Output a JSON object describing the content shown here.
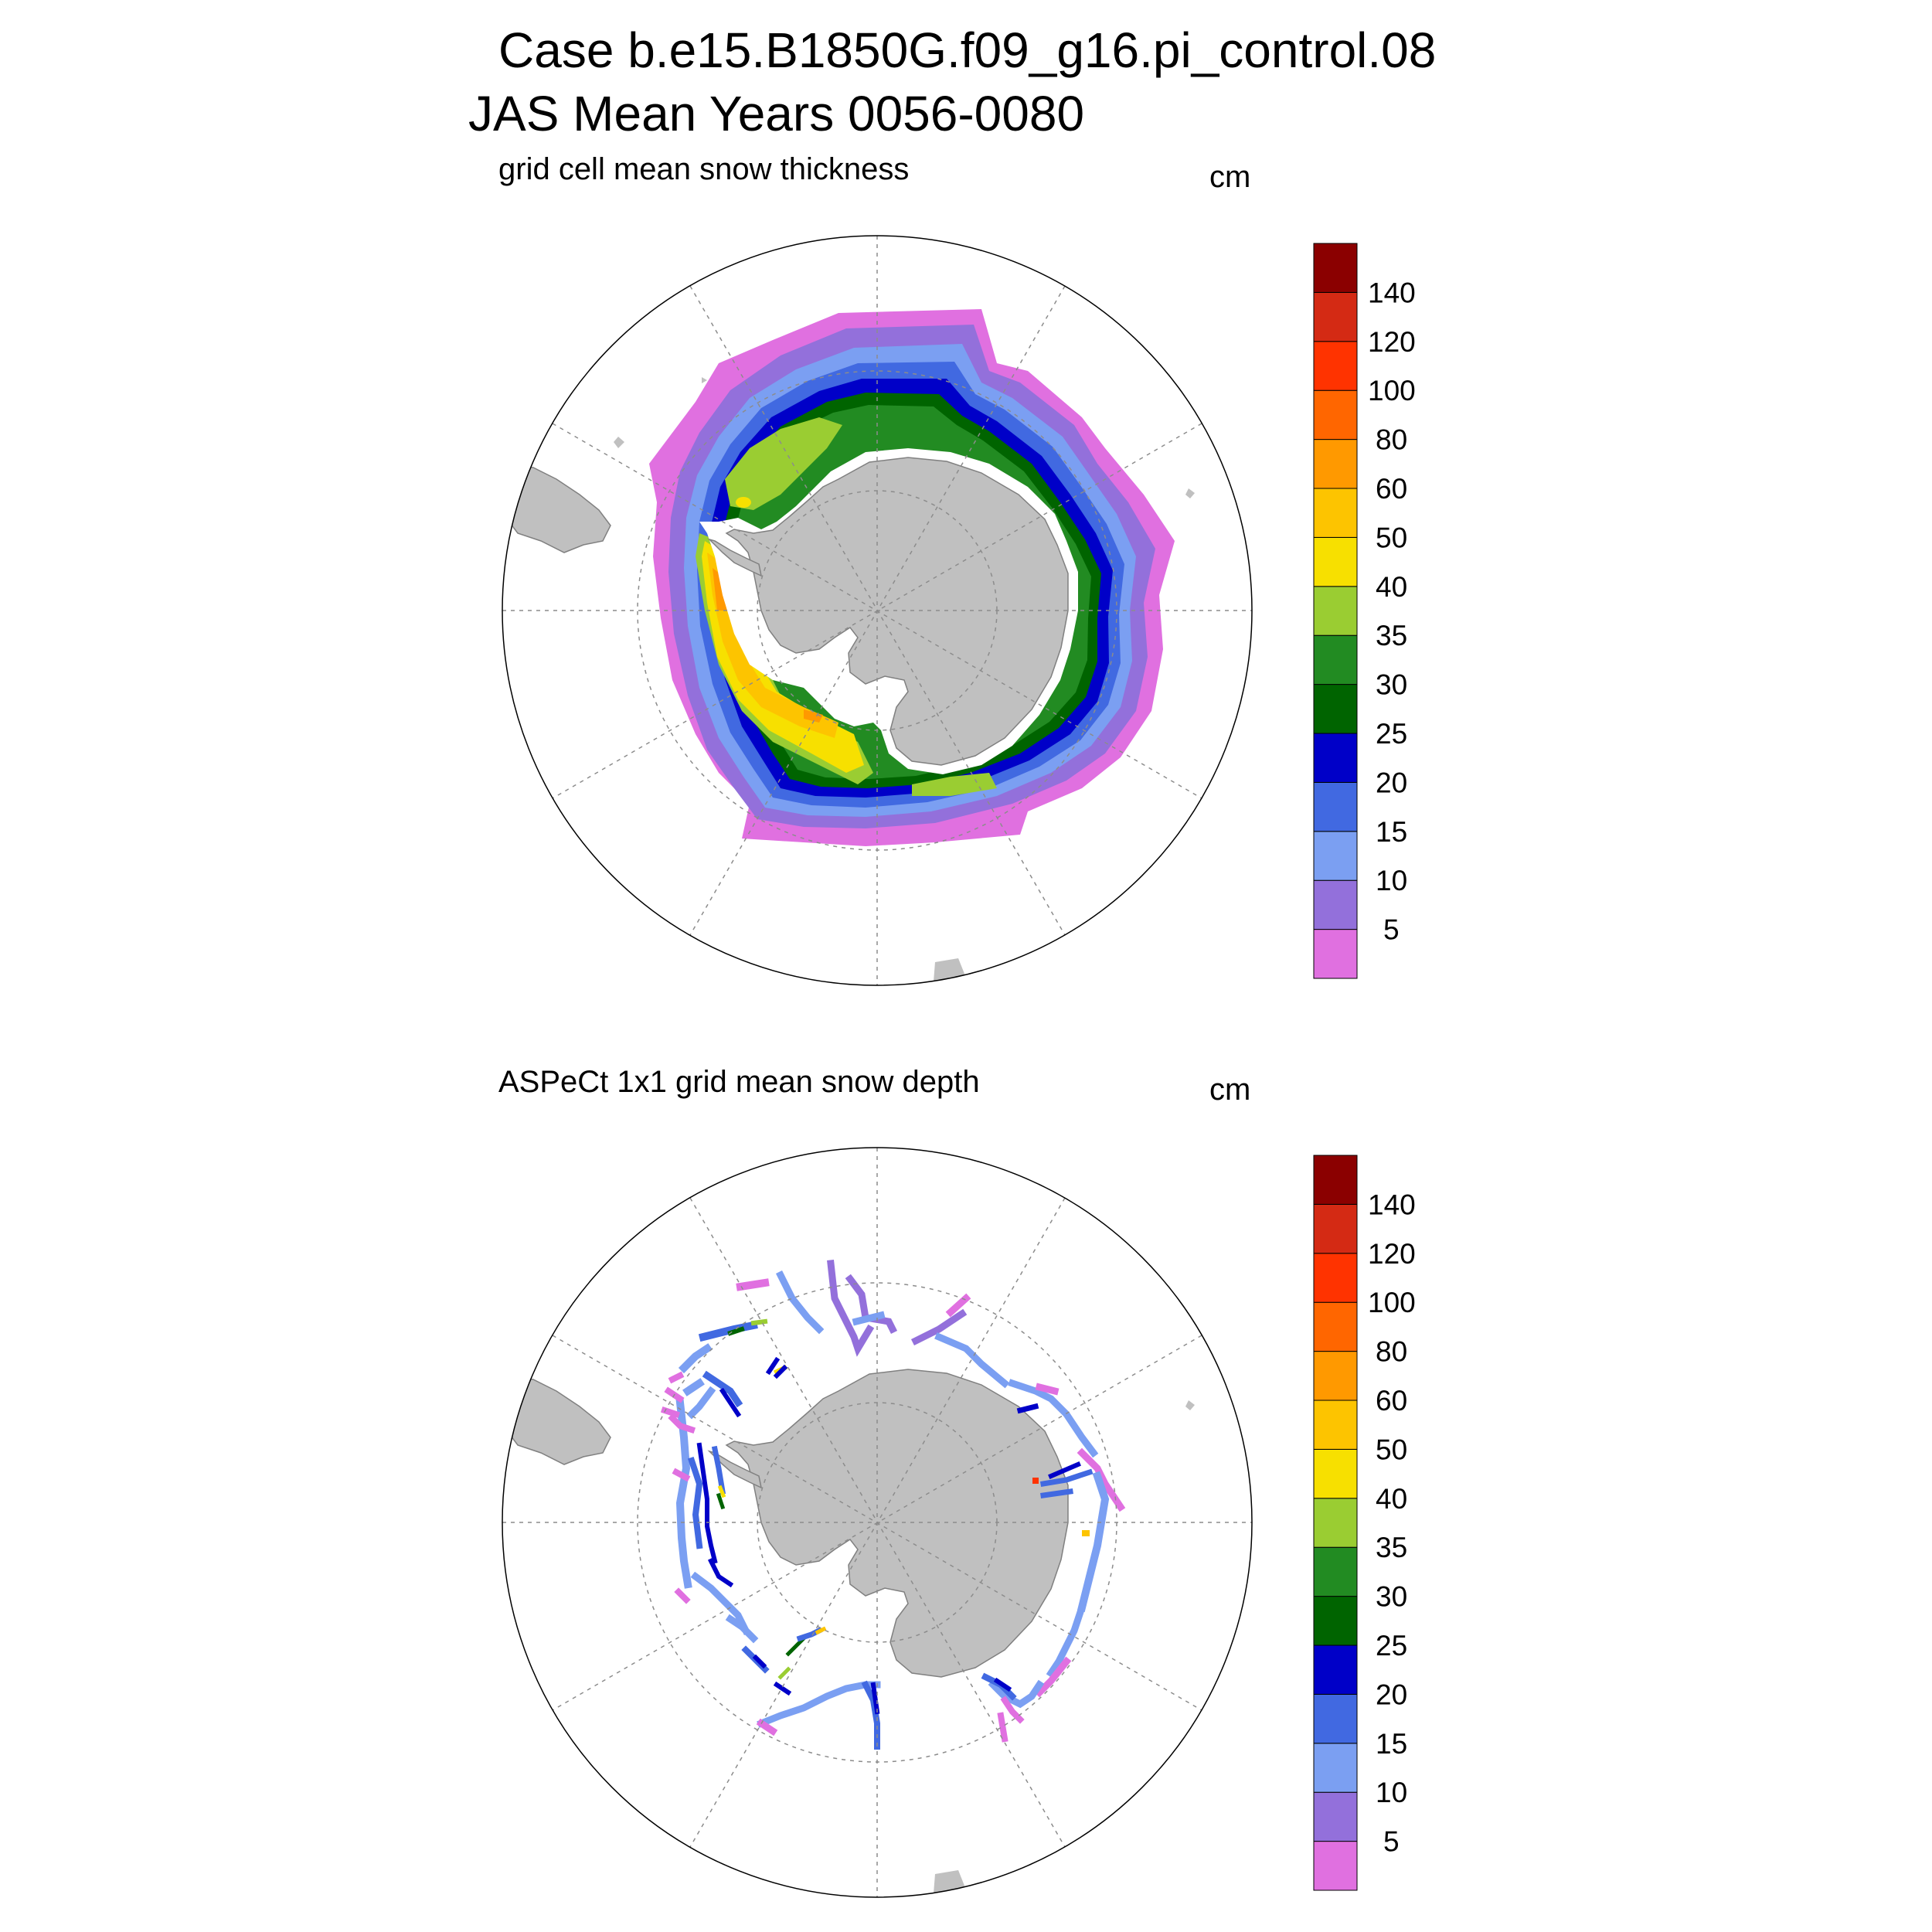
{
  "header": {
    "line1": "Case b.e15.B1850G.f09_g16.pi_control.08",
    "line2": "JAS Mean   Years 0056-0080"
  },
  "panels": [
    {
      "title": "grid cell mean snow thickness",
      "units": "cm",
      "kind": "model"
    },
    {
      "title": "ASPeCt 1x1 grid mean snow depth",
      "units": "cm",
      "kind": "observations"
    }
  ],
  "colorbar": {
    "labels": [
      "5",
      "10",
      "15",
      "20",
      "25",
      "30",
      "35",
      "40",
      "50",
      "60",
      "80",
      "100",
      "120",
      "140"
    ],
    "colors": [
      "#e070e0",
      "#9370db",
      "#7b9ff2",
      "#4169e1",
      "#0000c8",
      "#006400",
      "#228b22",
      "#9acd32",
      "#f7e000",
      "#fdc400",
      "#ff9900",
      "#ff6600",
      "#ff3300",
      "#d42a14",
      "#8b0000"
    ]
  },
  "map_style": {
    "land": "#c0c0c0",
    "coast": "#808080",
    "grid": "#8c8c8c"
  }
}
